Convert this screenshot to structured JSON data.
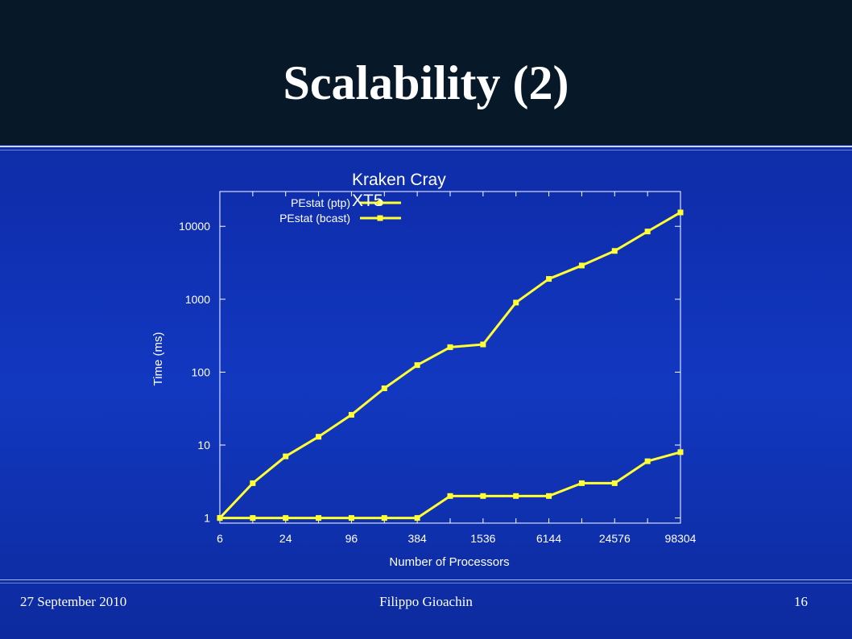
{
  "slide": {
    "title": "Scalability (2)",
    "footer": {
      "date": "27 September 2010",
      "author": "Filippo Gioachin",
      "page": "16"
    }
  },
  "colors": {
    "header_bg": "#071828",
    "background": "#0f2fb0",
    "series_line": "#ffff33",
    "axis": "#ffffff"
  },
  "chart_data": {
    "type": "line",
    "title": "Kraken Cray XT5",
    "xlabel": "Number of Processors",
    "ylabel": "Time (ms)",
    "x_scale": "log2",
    "y_scale": "log10",
    "x_tick_labels": [
      "6",
      "24",
      "96",
      "384",
      "1536",
      "6144",
      "24576",
      "98304"
    ],
    "y_tick_labels": [
      "1",
      "10",
      "100",
      "1000",
      "10000"
    ],
    "xlim": [
      6,
      98304
    ],
    "ylim": [
      0.85,
      30000
    ],
    "legend_position": "top-left",
    "x": [
      6,
      12,
      24,
      48,
      96,
      192,
      384,
      768,
      1536,
      3072,
      6144,
      12288,
      24576,
      49152,
      98304
    ],
    "series": [
      {
        "name": "PEstat (ptp)",
        "marker": "circle",
        "values": [
          1,
          3,
          7,
          13,
          26,
          60,
          125,
          220,
          240,
          900,
          1900,
          2900,
          4600,
          8500,
          15500
        ]
      },
      {
        "name": "PEstat (bcast)",
        "marker": "square",
        "values": [
          1,
          1,
          1,
          1,
          1,
          1,
          1,
          2,
          2,
          2,
          2,
          3,
          3,
          6,
          8
        ]
      }
    ]
  }
}
